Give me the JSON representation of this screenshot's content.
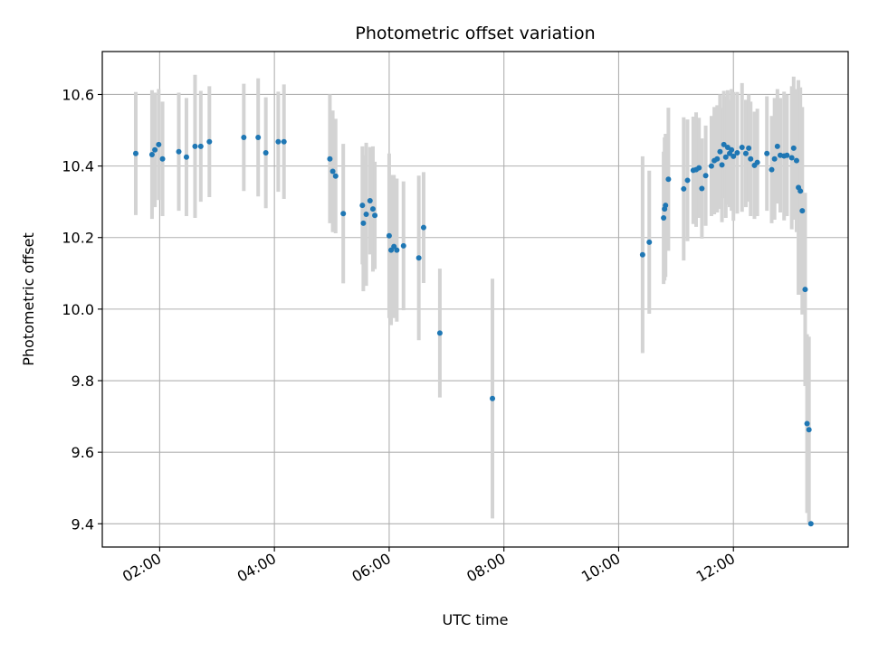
{
  "chart_data": {
    "type": "scatter",
    "title": "Photometric offset variation",
    "xlabel": "UTC time",
    "ylabel": "Photometric offset",
    "x_ticks": [
      "02:00",
      "04:00",
      "06:00",
      "08:00",
      "10:00",
      "12:00"
    ],
    "x_tick_hours": [
      2,
      4,
      6,
      8,
      10,
      12
    ],
    "y_ticks": [
      "9.4",
      "9.6",
      "9.8",
      "10.0",
      "10.2",
      "10.4",
      "10.6"
    ],
    "xlim": [
      "01:00",
      "14:00"
    ],
    "ylim": [
      9.335,
      10.72
    ],
    "grid": true,
    "errorbar_color": "#d3d3d3",
    "point_color": "#1f77b4",
    "series": [
      {
        "x": [
          "01:35",
          "01:52",
          "01:55",
          "01:59",
          "02:03",
          "02:20",
          "02:28",
          "02:37",
          "02:43",
          "02:52",
          "03:28",
          "03:43",
          "03:51",
          "04:04",
          "04:10",
          "04:58",
          "05:01",
          "05:04",
          "05:12",
          "05:32",
          "05:33",
          "05:36",
          "05:40",
          "05:43",
          "05:45",
          "06:00",
          "06:02",
          "06:05",
          "06:08",
          "06:15",
          "06:31",
          "06:36",
          "06:53",
          "07:48",
          "10:25",
          "10:32",
          "10:47",
          "10:48",
          "10:49",
          "10:52",
          "11:08",
          "11:12",
          "11:18",
          "11:21",
          "11:24",
          "11:27",
          "11:31",
          "11:37",
          "11:40",
          "11:43",
          "11:46",
          "11:48",
          "11:50",
          "11:52",
          "11:54",
          "11:56",
          "11:58",
          "12:00",
          "12:04",
          "12:09",
          "12:13",
          "12:16",
          "12:18",
          "12:22",
          "12:25",
          "12:35",
          "12:40",
          "12:43",
          "12:46",
          "12:49",
          "12:53",
          "12:56",
          "13:01",
          "13:03",
          "13:06",
          "13:08",
          "13:10",
          "13:12",
          "13:15",
          "13:17",
          "13:19",
          "13:21"
        ],
        "y": [
          10.435,
          10.432,
          10.445,
          10.46,
          10.42,
          10.44,
          10.425,
          10.455,
          10.455,
          10.468,
          10.48,
          10.48,
          10.437,
          10.468,
          10.468,
          10.42,
          10.385,
          10.372,
          10.267,
          10.29,
          10.24,
          10.265,
          10.303,
          10.28,
          10.262,
          10.205,
          10.165,
          10.175,
          10.165,
          10.177,
          10.143,
          10.228,
          9.933,
          9.75,
          10.152,
          10.187,
          10.255,
          10.28,
          10.29,
          10.363,
          10.336,
          10.36,
          10.388,
          10.39,
          10.395,
          10.337,
          10.373,
          10.4,
          10.415,
          10.42,
          10.44,
          10.403,
          10.46,
          10.425,
          10.452,
          10.435,
          10.445,
          10.427,
          10.437,
          10.452,
          10.435,
          10.45,
          10.42,
          10.402,
          10.41,
          10.435,
          10.39,
          10.42,
          10.455,
          10.43,
          10.428,
          10.43,
          10.423,
          10.45,
          10.415,
          10.34,
          10.33,
          10.275,
          10.055,
          9.68,
          9.663,
          9.4
        ],
        "err": [
          0.172,
          0.18,
          0.16,
          0.155,
          0.16,
          0.165,
          0.165,
          0.2,
          0.155,
          0.155,
          0.15,
          0.165,
          0.155,
          0.14,
          0.16,
          0.18,
          0.17,
          0.16,
          0.195,
          0.165,
          0.19,
          0.2,
          0.15,
          0.175,
          0.15,
          0.23,
          0.21,
          0.2,
          0.2,
          0.18,
          0.23,
          0.155,
          0.18,
          0.335,
          0.275,
          0.2,
          0.185,
          0.2,
          0.2,
          0.2,
          0.2,
          0.17,
          0.15,
          0.16,
          0.14,
          0.14,
          0.14,
          0.14,
          0.15,
          0.15,
          0.16,
          0.16,
          0.15,
          0.17,
          0.16,
          0.15,
          0.17,
          0.18,
          0.17,
          0.18,
          0.15,
          0.15,
          0.16,
          0.15,
          0.15,
          0.16,
          0.15,
          0.17,
          0.16,
          0.16,
          0.18,
          0.17,
          0.2,
          0.2,
          0.2,
          0.3,
          0.29,
          0.29,
          0.27,
          0.25,
          0.26,
          0.0
        ]
      }
    ]
  }
}
